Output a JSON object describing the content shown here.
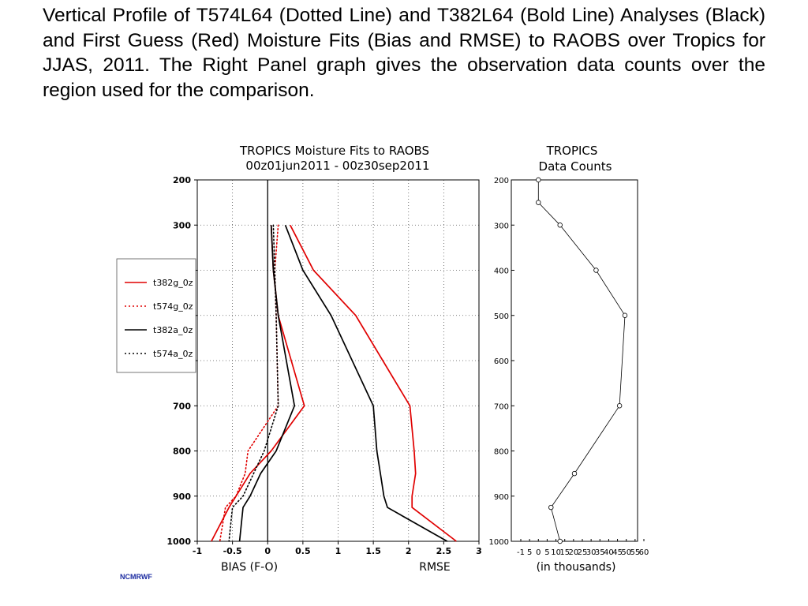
{
  "caption": "Vertical Profile of T574L64 (Dotted Line) and T382L64 (Bold Line) Analyses (Black) and First Guess (Red) Moisture Fits (Bias and RMSE) to RAOBS over Tropics for JJAS, 2011. The Right Panel graph gives the observation data counts over the region used for the comparison.",
  "credit": "NCMRWF",
  "chart_data": [
    {
      "type": "line",
      "title": "TROPICS Moisture Fits to RAOBS",
      "subtitle": "00z01jun2011 - 00z30sep2011",
      "xlabel": "BIAS (F-O)",
      "xlabel_right": "RMSE",
      "x_ticks": [
        "-1",
        "-0.5",
        "0",
        "0.5",
        "1",
        "1.5",
        "2",
        "2.5",
        "3"
      ],
      "y_ticks": [
        "200",
        "300",
        "400",
        "500",
        "600",
        "700",
        "800",
        "900",
        "1000"
      ],
      "xlim": [
        -1,
        3
      ],
      "ylim": [
        1000,
        200
      ],
      "grid": true,
      "legend_position": "left",
      "levels": [
        300,
        400,
        500,
        700,
        800,
        850,
        900,
        925,
        1000
      ],
      "series": [
        {
          "name": "t382g_0z",
          "color": "#e00000",
          "style": "solid",
          "bias": [
            0.05,
            0.08,
            0.15,
            0.52,
            0.05,
            -0.25,
            -0.45,
            -0.55,
            -0.8
          ],
          "rmse": [
            0.32,
            0.65,
            1.25,
            2.02,
            2.08,
            2.1,
            2.05,
            2.05,
            2.68
          ]
        },
        {
          "name": "t574g_0z",
          "color": "#e00000",
          "style": "dotted",
          "bias": [
            0.15,
            0.1,
            0.12,
            0.15,
            -0.28,
            -0.32,
            -0.45,
            -0.6,
            -0.68
          ]
        },
        {
          "name": "t382a_0z",
          "color": "#000000",
          "style": "solid",
          "bias": [
            0.05,
            0.08,
            0.15,
            0.38,
            0.12,
            -0.1,
            -0.25,
            -0.35,
            -0.4
          ],
          "rmse": [
            0.25,
            0.5,
            0.9,
            1.5,
            1.55,
            1.6,
            1.65,
            1.7,
            2.55
          ]
        },
        {
          "name": "t574a_0z",
          "color": "#000000",
          "style": "dotted",
          "bias": [
            0.08,
            0.1,
            0.12,
            0.15,
            -0.05,
            -0.2,
            -0.35,
            -0.5,
            -0.55
          ]
        }
      ]
    },
    {
      "type": "line",
      "title": "TROPICS",
      "subtitle": "Data Counts",
      "xlabel": "(in thousands)",
      "x_ticks": [
        "-1",
        "5",
        "0",
        "5",
        "10",
        "15",
        "20",
        "25",
        "30",
        "35",
        "40",
        "45",
        "50",
        "55",
        "60"
      ],
      "y_ticks": [
        "200",
        "300",
        "400",
        "500",
        "600",
        "700",
        "800",
        "900",
        "1000"
      ],
      "xlim": [
        -10,
        60
      ],
      "ylim": [
        1000,
        200
      ],
      "levels": [
        200,
        250,
        300,
        400,
        500,
        700,
        850,
        925,
        1000
      ],
      "counts": [
        5,
        5,
        17,
        37,
        53,
        50,
        25,
        12,
        17
      ]
    }
  ]
}
